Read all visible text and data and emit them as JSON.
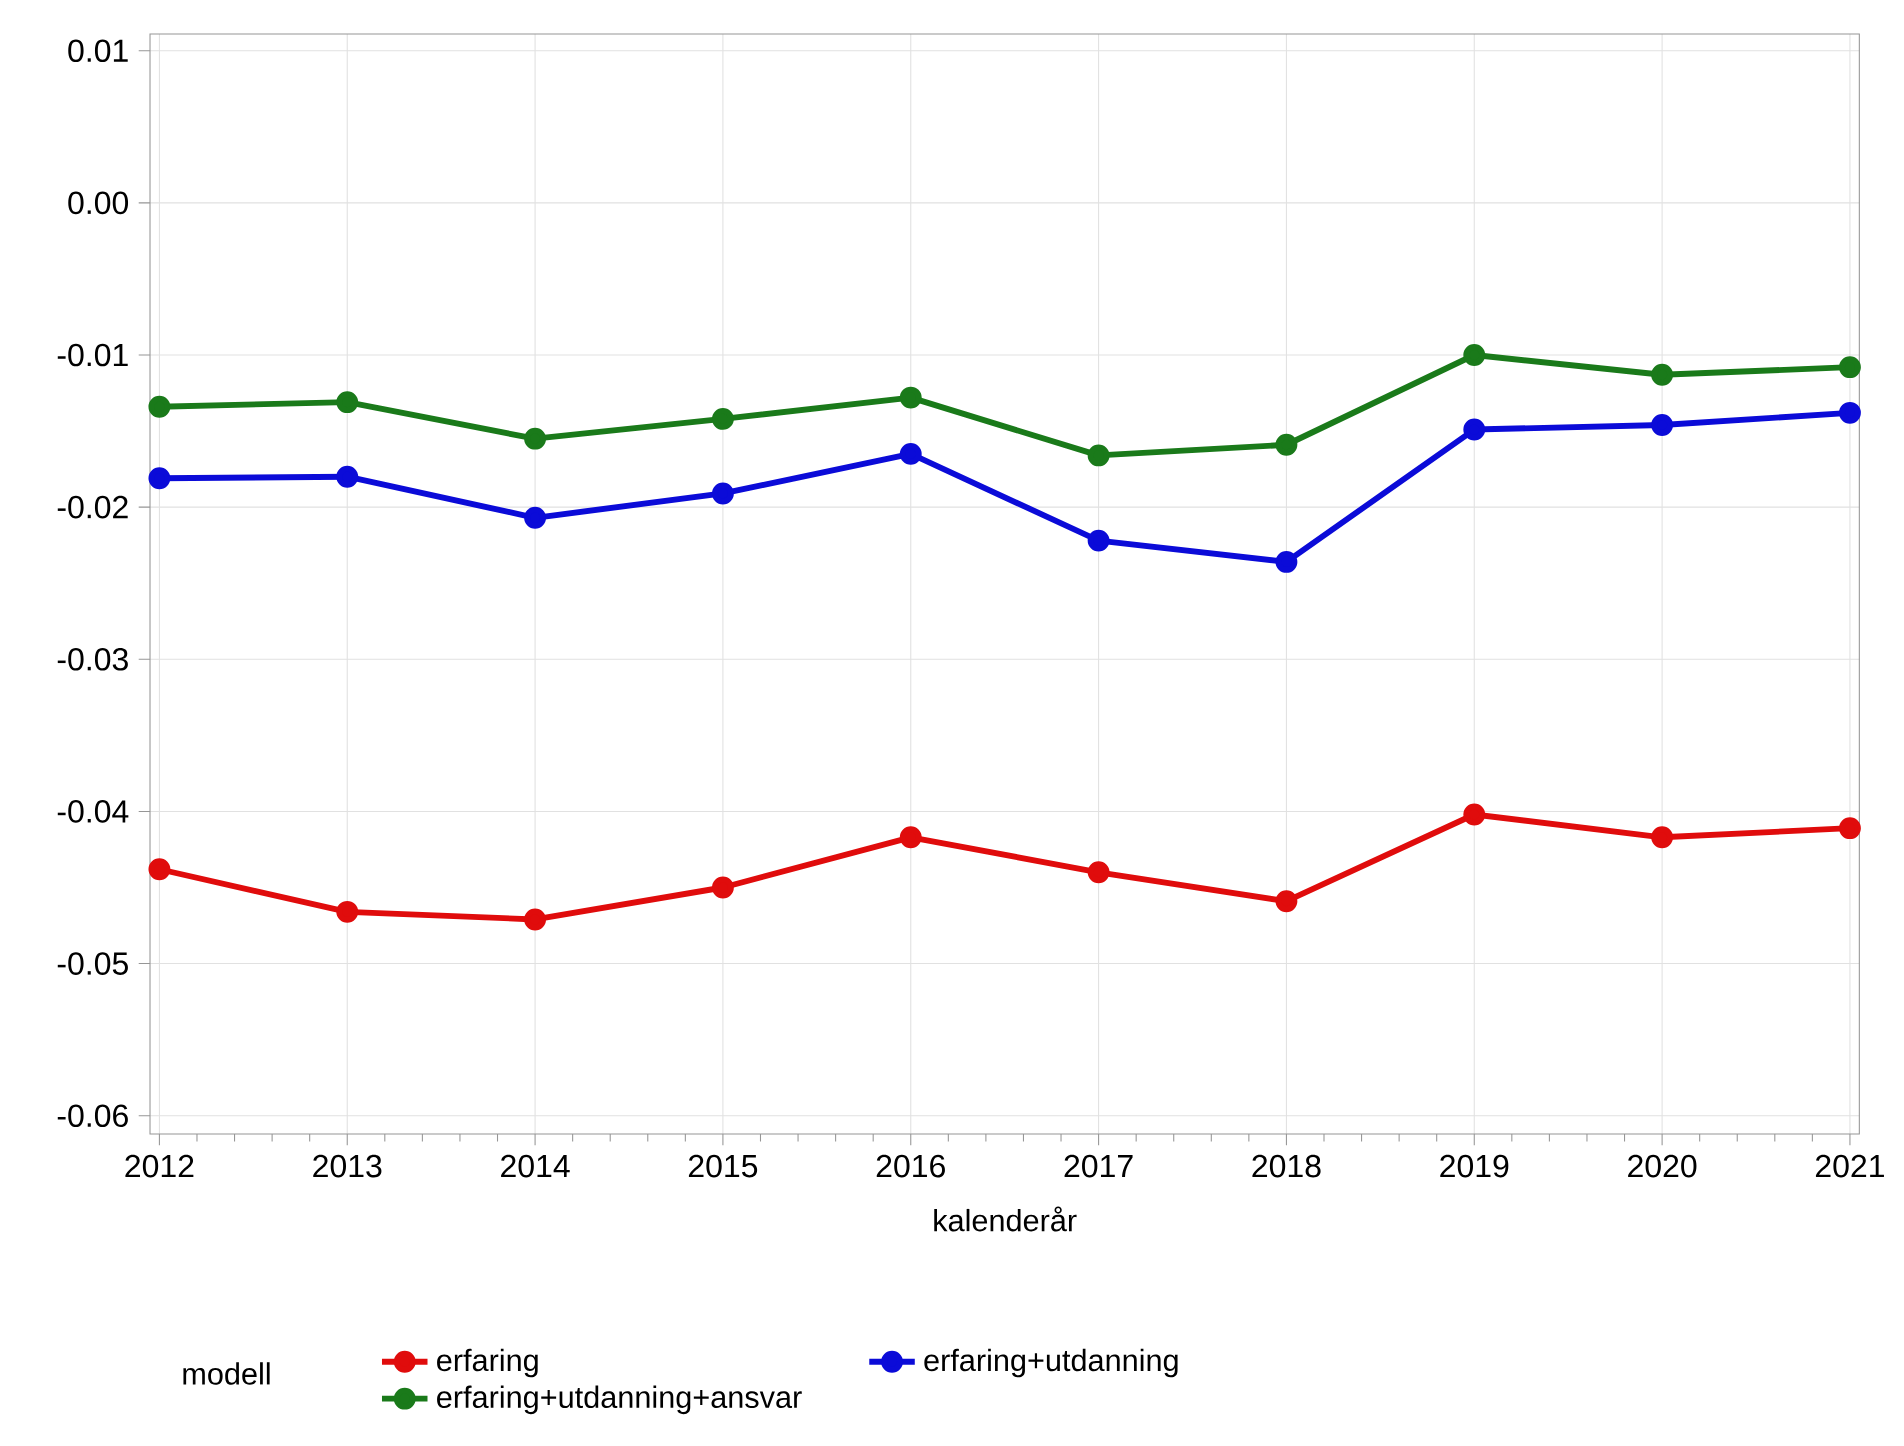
{
  "chart_data": {
    "type": "line",
    "xlabel": "kalenderår",
    "legend_title": "modell",
    "x": [
      2012,
      2013,
      2014,
      2015,
      2016,
      2017,
      2018,
      2019,
      2020,
      2021
    ],
    "series": [
      {
        "name": "erfaring",
        "color": "#e00c0c",
        "values": [
          -0.0438,
          -0.0466,
          -0.0471,
          -0.045,
          -0.0417,
          -0.044,
          -0.0459,
          -0.0402,
          -0.0417,
          -0.0411
        ]
      },
      {
        "name": "erfaring+utdanning",
        "color": "#0b0bd8",
        "values": [
          -0.0181,
          -0.018,
          -0.0207,
          -0.0191,
          -0.0165,
          -0.0222,
          -0.0236,
          -0.0149,
          -0.0146,
          -0.0138
        ]
      },
      {
        "name": "erfaring+utdanning+ansvar",
        "color": "#1a7a1a",
        "values": [
          -0.0134,
          -0.0131,
          -0.0155,
          -0.0142,
          -0.0128,
          -0.0166,
          -0.0159,
          -0.01,
          -0.0113,
          -0.0108
        ]
      }
    ],
    "xlim": [
      2011.95,
      2021.05
    ],
    "ylim": [
      -0.0612,
      0.0111
    ],
    "xticks": [
      2012,
      2013,
      2014,
      2015,
      2016,
      2017,
      2018,
      2019,
      2020,
      2021
    ],
    "yticks": [
      0.01,
      {
        "value": 0,
        "label": "0.00"
      },
      -0.01,
      -0.02,
      -0.03,
      -0.04,
      -0.05,
      -0.06
    ],
    "grid": true,
    "legend": "bottom",
    "marker": "circle",
    "line_style": "solid"
  }
}
